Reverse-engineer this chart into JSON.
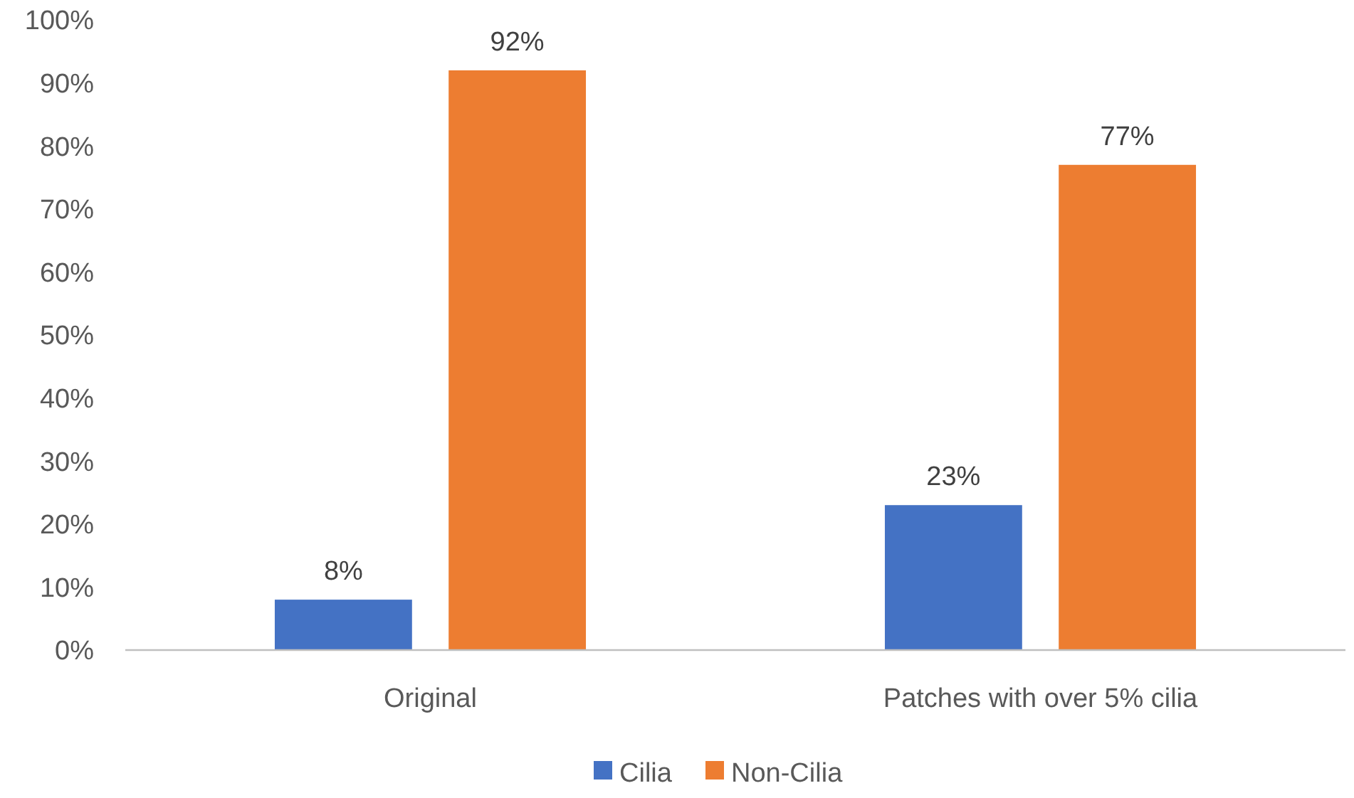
{
  "chart_data": {
    "type": "bar",
    "categories": [
      "Original",
      "Patches with over 5% cilia"
    ],
    "series": [
      {
        "name": "Cilia",
        "color": "#4472c4",
        "values": [
          8,
          23
        ],
        "value_labels": [
          "8%",
          "23%"
        ]
      },
      {
        "name": "Non-Cilia",
        "color": "#ed7d31",
        "values": [
          92,
          77
        ],
        "value_labels": [
          "92%",
          "77%"
        ]
      }
    ],
    "ylim": [
      0,
      100
    ],
    "yticks": [
      {
        "value": 0,
        "label": "0%"
      },
      {
        "value": 10,
        "label": "10%"
      },
      {
        "value": 20,
        "label": "20%"
      },
      {
        "value": 30,
        "label": "30%"
      },
      {
        "value": 40,
        "label": "40%"
      },
      {
        "value": 50,
        "label": "50%"
      },
      {
        "value": 60,
        "label": "60%"
      },
      {
        "value": 70,
        "label": "70%"
      },
      {
        "value": 80,
        "label": "80%"
      },
      {
        "value": 90,
        "label": "90%"
      },
      {
        "value": 100,
        "label": "100%"
      }
    ],
    "grid": false,
    "legend": "bottom"
  }
}
